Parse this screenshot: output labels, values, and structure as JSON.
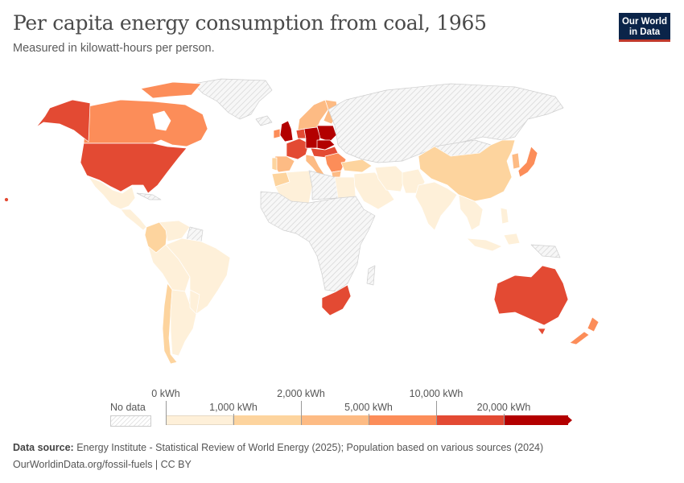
{
  "header": {
    "title": "Per capita energy consumption from coal, 1965",
    "subtitle": "Measured in kilowatt-hours per person.",
    "logo_line1": "Our World",
    "logo_line2": "in Data"
  },
  "legend": {
    "no_data_label": "No data",
    "bins": [
      {
        "label": "0 kWh",
        "color": "#fef0d9"
      },
      {
        "label": "1,000 kWh",
        "color": "#fdd49e"
      },
      {
        "label": "2,000 kWh",
        "color": "#fdbb84"
      },
      {
        "label": "5,000 kWh",
        "color": "#fc8d59"
      },
      {
        "label": "10,000 kWh",
        "color": "#e34a33"
      },
      {
        "label": "20,000 kWh",
        "color": "#b30000"
      }
    ],
    "no_data_color": "#e6e6e6"
  },
  "map_data": {
    "year": 1965,
    "unit": "kWh per person",
    "regions": [
      {
        "name": "Canada",
        "bin": "5,000-10,000 kWh",
        "color": "#fc8d59"
      },
      {
        "name": "Alaska (United States)",
        "bin": "10,000-20,000 kWh",
        "color": "#e34a33"
      },
      {
        "name": "United States",
        "bin": "10,000-20,000 kWh",
        "color": "#e34a33"
      },
      {
        "name": "Mexico",
        "bin": "0-1,000 kWh",
        "color": "#fef0d9"
      },
      {
        "name": "Central America",
        "bin": "0-1,000 kWh",
        "color": "#fef0d9"
      },
      {
        "name": "Colombia",
        "bin": "1,000-2,000 kWh",
        "color": "#fdd49e"
      },
      {
        "name": "Venezuela",
        "bin": "0-1,000 kWh",
        "color": "#fef0d9"
      },
      {
        "name": "Brazil",
        "bin": "0-1,000 kWh",
        "color": "#fef0d9"
      },
      {
        "name": "Peru",
        "bin": "0-1,000 kWh",
        "color": "#fef0d9"
      },
      {
        "name": "Chile",
        "bin": "1,000-2,000 kWh",
        "color": "#fdd49e"
      },
      {
        "name": "Argentina",
        "bin": "0-1,000 kWh",
        "color": "#fef0d9"
      },
      {
        "name": "United Kingdom",
        "bin": ">20,000 kWh",
        "color": "#b30000"
      },
      {
        "name": "Ireland",
        "bin": "5,000-10,000 kWh",
        "color": "#fc8d59"
      },
      {
        "name": "France",
        "bin": "10,000-20,000 kWh",
        "color": "#e34a33"
      },
      {
        "name": "Spain",
        "bin": "2,000-5,000 kWh",
        "color": "#fdbb84"
      },
      {
        "name": "Portugal",
        "bin": "1,000-2,000 kWh",
        "color": "#fdd49e"
      },
      {
        "name": "Germany",
        "bin": ">20,000 kWh",
        "color": "#b30000"
      },
      {
        "name": "Poland",
        "bin": ">20,000 kWh",
        "color": "#b30000"
      },
      {
        "name": "Czechoslovakia",
        "bin": ">20,000 kWh",
        "color": "#b30000"
      },
      {
        "name": "Italy",
        "bin": "2,000-5,000 kWh",
        "color": "#fdbb84"
      },
      {
        "name": "Scandinavia",
        "bin": "2,000-5,000 kWh",
        "color": "#fdbb84"
      },
      {
        "name": "Finland",
        "bin": "2,000-5,000 kWh",
        "color": "#fdbb84"
      },
      {
        "name": "Balkans",
        "bin": "5,000-10,000 kWh",
        "color": "#fc8d59"
      },
      {
        "name": "Turkey",
        "bin": "1,000-2,000 kWh",
        "color": "#fdd49e"
      },
      {
        "name": "USSR region",
        "bin": "No data",
        "color": "#e6e6e6"
      },
      {
        "name": "China",
        "bin": "1,000-2,000 kWh",
        "color": "#fdd49e"
      },
      {
        "name": "Japan",
        "bin": "5,000-10,000 kWh",
        "color": "#fc8d59"
      },
      {
        "name": "South Korea",
        "bin": "2,000-5,000 kWh",
        "color": "#fdbb84"
      },
      {
        "name": "India",
        "bin": "0-1,000 kWh",
        "color": "#fef0d9"
      },
      {
        "name": "Pakistan",
        "bin": "0-1,000 kWh",
        "color": "#fef0d9"
      },
      {
        "name": "Iran",
        "bin": "0-1,000 kWh",
        "color": "#fef0d9"
      },
      {
        "name": "Southeast Asia",
        "bin": "0-1,000 kWh",
        "color": "#fef0d9"
      },
      {
        "name": "Indonesia",
        "bin": "0-1,000 kWh",
        "color": "#fef0d9"
      },
      {
        "name": "Philippines",
        "bin": "0-1,000 kWh",
        "color": "#fef0d9"
      },
      {
        "name": "Algeria",
        "bin": "0-1,000 kWh",
        "color": "#fef0d9"
      },
      {
        "name": "Morocco",
        "bin": "1,000-2,000 kWh",
        "color": "#fdd49e"
      },
      {
        "name": "Egypt",
        "bin": "0-1,000 kWh",
        "color": "#fef0d9"
      },
      {
        "name": "Sub-Saharan Africa",
        "bin": "No data",
        "color": "#e6e6e6"
      },
      {
        "name": "South Africa",
        "bin": "10,000-20,000 kWh",
        "color": "#e34a33"
      },
      {
        "name": "Australia",
        "bin": "10,000-20,000 kWh",
        "color": "#e34a33"
      },
      {
        "name": "New Zealand",
        "bin": "5,000-10,000 kWh",
        "color": "#fc8d59"
      },
      {
        "name": "Greenland",
        "bin": "No data",
        "color": "#e6e6e6"
      }
    ]
  },
  "footer": {
    "source_label": "Data source:",
    "source_text": "Energy Institute - Statistical Review of World Energy (2025); Population based on various sources (2024)",
    "link_text": "OurWorldinData.org/fossil-fuels | CC BY"
  }
}
